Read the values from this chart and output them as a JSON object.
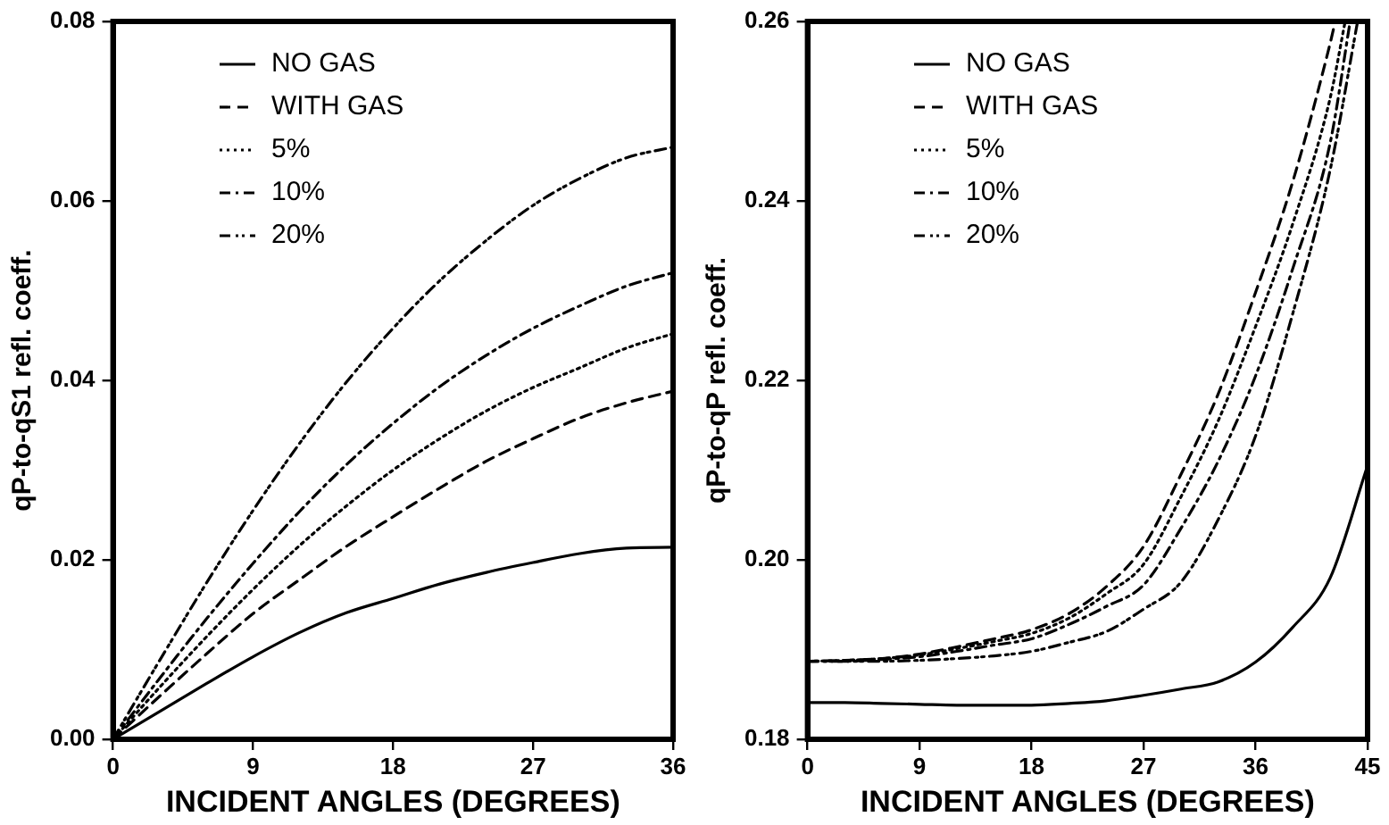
{
  "chart_data": [
    {
      "type": "line",
      "xlabel": "INCIDENT ANGLES (DEGREES)",
      "ylabel": "qP-to-qS1 refl. coeff.",
      "xlim": [
        0,
        36
      ],
      "xticks": [
        0,
        9,
        18,
        27,
        36
      ],
      "ylim": [
        0,
        0.08
      ],
      "yticks": [
        {
          "value": 0,
          "label": "0.00"
        },
        0.02,
        0.04,
        0.06,
        0.08
      ],
      "grid": false,
      "legend": "top left",
      "marker": "none",
      "tick_labels": true,
      "x": [
        0,
        3,
        6,
        9,
        12,
        15,
        18,
        21,
        24,
        27,
        30,
        33,
        36
      ],
      "series": [
        {
          "name": "NO GAS",
          "color": "#000000",
          "line_style": "solid",
          "values": [
            0,
            0.0031,
            0.0062,
            0.0092,
            0.0119,
            0.0141,
            0.0157,
            0.0173,
            0.0186,
            0.0197,
            0.0207,
            0.0213,
            0.0214
          ]
        },
        {
          "name": "WITH GAS",
          "color": "#000000",
          "line_style": "dashed",
          "values": [
            0,
            0.0048,
            0.0095,
            0.014,
            0.0178,
            0.0215,
            0.0248,
            0.028,
            0.031,
            0.0335,
            0.0358,
            0.0375,
            0.0388
          ]
        },
        {
          "name": "5%",
          "color": "#000000",
          "line_style": "dotted",
          "values": [
            0,
            0.0058,
            0.0114,
            0.0167,
            0.0216,
            0.026,
            0.03,
            0.0335,
            0.0366,
            0.0392,
            0.0414,
            0.0436,
            0.0452
          ]
        },
        {
          "name": "10%",
          "color": "#000000",
          "line_style": "dashdot",
          "values": [
            0,
            0.0068,
            0.0134,
            0.0196,
            0.0254,
            0.0306,
            0.0352,
            0.0393,
            0.0428,
            0.0458,
            0.0483,
            0.0505,
            0.052
          ]
        },
        {
          "name": "20%",
          "color": "#000000",
          "line_style": "dashdotdot",
          "values": [
            0,
            0.0088,
            0.0174,
            0.0255,
            0.033,
            0.0398,
            0.0458,
            0.0511,
            0.0556,
            0.0595,
            0.0625,
            0.0648,
            0.066
          ]
        }
      ]
    },
    {
      "type": "line",
      "xlabel": "INCIDENT ANGLES (DEGREES)",
      "ylabel": "qP-to-qP refl. coeff.",
      "xlim": [
        0,
        45
      ],
      "xticks": [
        0,
        9,
        18,
        27,
        36,
        45
      ],
      "ylim": [
        0.18,
        0.26
      ],
      "yticks": [
        0.18,
        {
          "value": 0.2,
          "label": "0.20"
        },
        0.22,
        0.24,
        0.26
      ],
      "grid": false,
      "legend": "top left",
      "marker": "none",
      "tick_labels": true,
      "x": [
        0,
        3,
        6,
        9,
        12,
        15,
        18,
        21,
        24,
        27,
        30,
        33,
        36,
        39,
        42,
        45
      ],
      "series": [
        {
          "name": "NO GAS",
          "color": "#000000",
          "line_style": "solid",
          "values": [
            0.1841,
            0.1841,
            0.184,
            0.1839,
            0.1838,
            0.1838,
            0.1838,
            0.184,
            0.1843,
            0.1849,
            0.1856,
            0.1864,
            0.1886,
            0.1925,
            0.198,
            0.2105
          ]
        },
        {
          "name": "WITH GAS",
          "color": "#000000",
          "line_style": "dashed",
          "x": [
            0,
            3,
            6,
            9,
            12,
            15,
            18,
            21,
            24,
            27,
            30,
            33,
            36,
            39,
            42,
            42.4
          ],
          "values": [
            0.1887,
            0.1888,
            0.189,
            0.1895,
            0.1903,
            0.1912,
            0.1922,
            0.194,
            0.197,
            0.2015,
            0.2095,
            0.2185,
            0.2298,
            0.2422,
            0.2576,
            0.26
          ]
        },
        {
          "name": "5%",
          "color": "#000000",
          "line_style": "dotted",
          "x": [
            0,
            3,
            6,
            9,
            12,
            15,
            18,
            21,
            24,
            27,
            30,
            33,
            36,
            39,
            42,
            43.2
          ],
          "values": [
            0.1887,
            0.1888,
            0.189,
            0.1894,
            0.1901,
            0.1909,
            0.1918,
            0.1935,
            0.1962,
            0.1995,
            0.207,
            0.2155,
            0.226,
            0.2375,
            0.2515,
            0.26
          ]
        },
        {
          "name": "10%",
          "color": "#000000",
          "line_style": "dashdot",
          "x": [
            0,
            3,
            6,
            9,
            12,
            15,
            18,
            21,
            24,
            27,
            30,
            33,
            36,
            39,
            42,
            43.6
          ],
          "values": [
            0.1887,
            0.1887,
            0.1889,
            0.1892,
            0.1898,
            0.1905,
            0.1912,
            0.1928,
            0.1948,
            0.1972,
            0.2035,
            0.211,
            0.2205,
            0.2325,
            0.2465,
            0.26
          ]
        },
        {
          "name": "20%",
          "color": "#000000",
          "line_style": "dashdotdot",
          "x": [
            0,
            3,
            6,
            9,
            12,
            15,
            18,
            21,
            24,
            27,
            30,
            33,
            36,
            39,
            42,
            44.2
          ],
          "values": [
            0.1887,
            0.1887,
            0.1887,
            0.1888,
            0.189,
            0.1893,
            0.1898,
            0.1908,
            0.192,
            0.1945,
            0.1975,
            0.2045,
            0.2138,
            0.2275,
            0.2435,
            0.26
          ]
        }
      ]
    }
  ]
}
